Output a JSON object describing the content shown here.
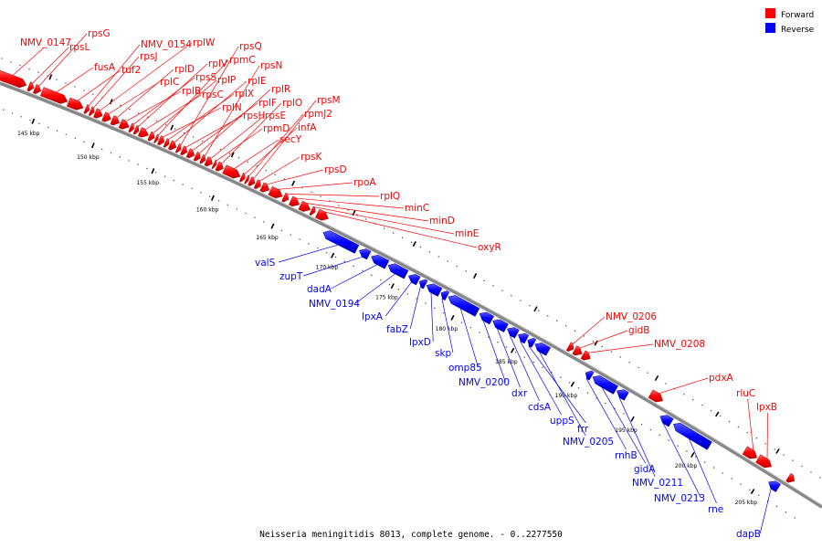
{
  "legend": [
    {
      "label": "Forward",
      "color": "#ff0000"
    },
    {
      "label": "Reverse",
      "color": "#0000ff"
    }
  ],
  "caption": "Neisseria meningitidis 8013, complete genome. - 0..2277550",
  "ticks": [
    {
      "kbp": 145,
      "label": "145 kbp"
    },
    {
      "kbp": 150,
      "label": "150 kbp"
    },
    {
      "kbp": 155,
      "label": "155 kbp"
    },
    {
      "kbp": 160,
      "label": "160 kbp"
    },
    {
      "kbp": 165,
      "label": "165 kbp"
    },
    {
      "kbp": 170,
      "label": "170 kbp"
    },
    {
      "kbp": 175,
      "label": "175 kbp"
    },
    {
      "kbp": 180,
      "label": "180 kbp"
    },
    {
      "kbp": 185,
      "label": "185 kbp"
    },
    {
      "kbp": 190,
      "label": "190 kbp"
    },
    {
      "kbp": 195,
      "label": "195 kbp"
    },
    {
      "kbp": 200,
      "label": "200 kbp"
    },
    {
      "kbp": 205,
      "label": "205 kbp"
    }
  ],
  "genes_forward": [
    {
      "name": "NMV_0147",
      "start": 141.0,
      "end": 143.5
    },
    {
      "name": "rpsL",
      "start": 143.7,
      "end": 144.1
    },
    {
      "name": "rpsG",
      "start": 144.2,
      "end": 144.7
    },
    {
      "name": "fusA",
      "start": 144.8,
      "end": 146.9
    },
    {
      "name": "tuf2",
      "start": 147.0,
      "end": 148.2
    },
    {
      "name": "NMV_0154",
      "start": 148.4,
      "end": 148.7
    },
    {
      "name": "rpsJ",
      "start": 148.8,
      "end": 149.1
    },
    {
      "name": "rplW",
      "start": 149.2,
      "end": 149.8
    },
    {
      "name": "rplC",
      "start": 149.9,
      "end": 150.5
    },
    {
      "name": "rplD",
      "start": 150.6,
      "end": 151.2
    },
    {
      "name": "rplB",
      "start": 151.3,
      "end": 152.0
    },
    {
      "name": "rpsS",
      "start": 152.1,
      "end": 152.4
    },
    {
      "name": "rplV",
      "start": 152.5,
      "end": 152.8
    },
    {
      "name": "rpsC",
      "start": 152.9,
      "end": 153.6
    },
    {
      "name": "rplP",
      "start": 153.7,
      "end": 154.1
    },
    {
      "name": "rpmC",
      "start": 154.2,
      "end": 154.4
    },
    {
      "name": "rplN",
      "start": 154.5,
      "end": 154.9
    },
    {
      "name": "rplX",
      "start": 155.0,
      "end": 155.3
    },
    {
      "name": "rplE",
      "start": 155.4,
      "end": 155.9
    },
    {
      "name": "rpsQ",
      "start": 156.0,
      "end": 156.3
    },
    {
      "name": "rpsH",
      "start": 156.4,
      "end": 156.8
    },
    {
      "name": "rplF",
      "start": 156.9,
      "end": 157.4
    },
    {
      "name": "rplR",
      "start": 157.5,
      "end": 157.9
    },
    {
      "name": "rpsN",
      "start": 158.0,
      "end": 158.3
    },
    {
      "name": "rpsE",
      "start": 158.4,
      "end": 158.9
    },
    {
      "name": "rpmD",
      "start": 159.0,
      "end": 159.2
    },
    {
      "name": "rplO",
      "start": 159.3,
      "end": 159.8
    },
    {
      "name": "secY",
      "start": 159.9,
      "end": 161.2
    },
    {
      "name": "infA",
      "start": 161.3,
      "end": 161.6
    },
    {
      "name": "rpmJ2",
      "start": 161.7,
      "end": 161.9
    },
    {
      "name": "rpsM",
      "start": 162.0,
      "end": 162.4
    },
    {
      "name": "rpsK",
      "start": 162.5,
      "end": 162.9
    },
    {
      "name": "rpsD",
      "start": 163.0,
      "end": 163.6
    },
    {
      "name": "rpoA",
      "start": 163.7,
      "end": 164.7
    },
    {
      "name": "rplQ",
      "start": 164.8,
      "end": 165.2
    },
    {
      "name": "minC",
      "start": 165.4,
      "end": 166.1
    },
    {
      "name": "minD",
      "start": 166.2,
      "end": 167.0
    },
    {
      "name": "minE",
      "start": 167.1,
      "end": 167.4
    },
    {
      "name": "oxyR",
      "start": 167.6,
      "end": 168.5
    },
    {
      "name": "NMV_0206",
      "start": 188.4,
      "end": 188.8
    },
    {
      "name": "gidB",
      "start": 188.9,
      "end": 189.5
    },
    {
      "name": "NMV_0208",
      "start": 189.6,
      "end": 190.2
    },
    {
      "name": "pdxA",
      "start": 195.2,
      "end": 196.2
    },
    {
      "name": "rluC",
      "start": 203.0,
      "end": 204.0
    },
    {
      "name": "lpxB",
      "start": 204.1,
      "end": 205.2
    },
    {
      "name": "",
      "start": 206.6,
      "end": 207.1
    }
  ],
  "genes_reverse": [
    {
      "name": "valS",
      "start": 168.6,
      "end": 171.4
    },
    {
      "name": "zupT",
      "start": 171.6,
      "end": 172.4
    },
    {
      "name": "dadA",
      "start": 172.6,
      "end": 173.9
    },
    {
      "name": "NMV_0194",
      "start": 174.0,
      "end": 175.5
    },
    {
      "name": "lpxA",
      "start": 175.7,
      "end": 176.5
    },
    {
      "name": "fabZ",
      "start": 176.6,
      "end": 177.1
    },
    {
      "name": "lpxD",
      "start": 177.2,
      "end": 178.3
    },
    {
      "name": "skp",
      "start": 178.4,
      "end": 178.9
    },
    {
      "name": "omp85",
      "start": 179.0,
      "end": 181.4
    },
    {
      "name": "NMV_0200",
      "start": 181.6,
      "end": 182.6
    },
    {
      "name": "dxr",
      "start": 182.7,
      "end": 183.8
    },
    {
      "name": "cdsA",
      "start": 183.9,
      "end": 184.7
    },
    {
      "name": "uppS",
      "start": 184.8,
      "end": 185.5
    },
    {
      "name": "frr",
      "start": 185.6,
      "end": 186.1
    },
    {
      "name": "NMV_0205",
      "start": 186.2,
      "end": 187.3
    },
    {
      "name": "rnhB",
      "start": 190.4,
      "end": 190.9
    },
    {
      "name": "gidA",
      "start": 191.0,
      "end": 192.9
    },
    {
      "name": "NMV_0211",
      "start": 193.0,
      "end": 193.8
    },
    {
      "name": "NMV_0213",
      "start": 196.6,
      "end": 197.5
    },
    {
      "name": "rne",
      "start": 197.7,
      "end": 200.7
    },
    {
      "name": "dapB",
      "start": 205.6,
      "end": 206.4
    }
  ]
}
